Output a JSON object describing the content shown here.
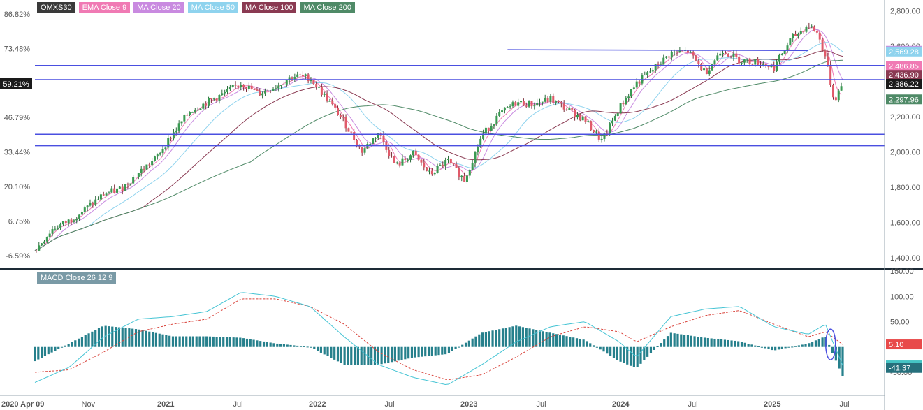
{
  "chart_data": [
    {
      "type": "candlestick",
      "symbol": "OMXS30",
      "legend": [
        {
          "label": "OMXS30",
          "color": "#3a3a3a"
        },
        {
          "label": "EMA Close 9",
          "color": "#f07ab4"
        },
        {
          "label": "MA Close 20",
          "color": "#c98ae0"
        },
        {
          "label": "MA Close 50",
          "color": "#8fd3ee"
        },
        {
          "label": "MA Close 100",
          "color": "#8a3a52"
        },
        {
          "label": "MA Close 200",
          "color": "#4f8a67"
        }
      ],
      "x_labels": [
        "2020 Apr 09",
        "Nov",
        "2021",
        "Jul",
        "2022",
        "Jul",
        "2023",
        "Jul",
        "2024",
        "Jul",
        "2025",
        "Jul"
      ],
      "left_axis_ticks": [
        "86.82%",
        "73.48%",
        "59.21%",
        "46.79%",
        "33.44%",
        "20.10%",
        "6.75%",
        "-6.59%"
      ],
      "right_axis_ticks": [
        "2,800.00",
        "2,600.00",
        "2,400.00",
        "2,200.00",
        "2,000.00",
        "1,800.00",
        "1,600.00",
        "1,400.00"
      ],
      "ylim": [
        1340,
        2830
      ],
      "price_path": [
        [
          0,
          1440
        ],
        [
          2,
          1560
        ],
        [
          4,
          1610
        ],
        [
          6,
          1680
        ],
        [
          8,
          1760
        ],
        [
          10,
          1790
        ],
        [
          12,
          1880
        ],
        [
          14,
          1960
        ],
        [
          16,
          2100
        ],
        [
          18,
          2230
        ],
        [
          20,
          2280
        ],
        [
          22,
          2330
        ],
        [
          24,
          2390
        ],
        [
          26,
          2330
        ],
        [
          28,
          2370
        ],
        [
          30,
          2430
        ],
        [
          32,
          2420
        ],
        [
          34,
          2300
        ],
        [
          36,
          2170
        ],
        [
          38,
          2000
        ],
        [
          40,
          2110
        ],
        [
          42,
          1920
        ],
        [
          44,
          1990
        ],
        [
          46,
          1870
        ],
        [
          48,
          1950
        ],
        [
          50,
          1840
        ],
        [
          52,
          2090
        ],
        [
          54,
          2210
        ],
        [
          56,
          2280
        ],
        [
          58,
          2270
        ],
        [
          60,
          2300
        ],
        [
          62,
          2240
        ],
        [
          64,
          2180
        ],
        [
          66,
          2060
        ],
        [
          68,
          2250
        ],
        [
          70,
          2390
        ],
        [
          72,
          2470
        ],
        [
          74,
          2560
        ],
        [
          76,
          2570
        ],
        [
          78,
          2450
        ],
        [
          80,
          2580
        ],
        [
          82,
          2520
        ],
        [
          84,
          2510
        ],
        [
          86,
          2480
        ],
        [
          88,
          2640
        ],
        [
          90,
          2720
        ],
        [
          91,
          2680
        ],
        [
          92,
          2540
        ],
        [
          93,
          2290
        ],
        [
          94,
          2386
        ]
      ],
      "x_index_max": 94,
      "horizontal_levels": [
        2490,
        2410,
        2100,
        2035
      ],
      "resistance_line": {
        "from": [
          55,
          2580
        ],
        "to": [
          90,
          2580
        ],
        "y_end": 2575
      },
      "current_values": [
        {
          "label": "2,573.43",
          "value": 2573.43,
          "color": "#c98ae0"
        },
        {
          "label": "2,569.28",
          "value": 2569.28,
          "color": "#8fd3ee"
        },
        {
          "label": "2,486.85",
          "value": 2486.85,
          "color": "#f07ab4"
        },
        {
          "label": "2,436.90",
          "value": 2436.9,
          "color": "#8a3a52"
        },
        {
          "label": "2,386.22",
          "value": 2386.22,
          "color": "#1a1a1a"
        },
        {
          "label": "2,297.96",
          "value": 2297.96,
          "color": "#4f8a67"
        }
      ],
      "left_highlight": {
        "label": "59.21%",
        "value": 2386.22
      }
    },
    {
      "type": "macd",
      "legend": "MACD Close 26 12 9",
      "right_axis_ticks": [
        "150.00",
        "100.00",
        "50.00",
        "-50.00"
      ],
      "ylim": [
        -90,
        150
      ],
      "macd_path": [
        [
          0,
          -70
        ],
        [
          4,
          -40
        ],
        [
          8,
          20
        ],
        [
          12,
          55
        ],
        [
          16,
          60
        ],
        [
          20,
          70
        ],
        [
          24,
          108
        ],
        [
          28,
          100
        ],
        [
          32,
          80
        ],
        [
          36,
          20
        ],
        [
          40,
          -35
        ],
        [
          44,
          -60
        ],
        [
          48,
          -75
        ],
        [
          52,
          -35
        ],
        [
          56,
          10
        ],
        [
          60,
          40
        ],
        [
          64,
          50
        ],
        [
          68,
          10
        ],
        [
          70,
          -20
        ],
        [
          74,
          60
        ],
        [
          78,
          75
        ],
        [
          82,
          80
        ],
        [
          86,
          40
        ],
        [
          90,
          25
        ],
        [
          92,
          45
        ],
        [
          94,
          -36.27
        ]
      ],
      "signal_path": [
        [
          0,
          -50
        ],
        [
          4,
          -45
        ],
        [
          8,
          -10
        ],
        [
          12,
          30
        ],
        [
          16,
          45
        ],
        [
          20,
          55
        ],
        [
          24,
          95
        ],
        [
          28,
          95
        ],
        [
          32,
          80
        ],
        [
          36,
          45
        ],
        [
          40,
          -10
        ],
        [
          44,
          -45
        ],
        [
          48,
          -65
        ],
        [
          52,
          -55
        ],
        [
          56,
          -20
        ],
        [
          60,
          20
        ],
        [
          64,
          40
        ],
        [
          68,
          30
        ],
        [
          70,
          10
        ],
        [
          74,
          40
        ],
        [
          78,
          62
        ],
        [
          82,
          72
        ],
        [
          86,
          45
        ],
        [
          90,
          20
        ],
        [
          92,
          30
        ],
        [
          94,
          5.1
        ]
      ],
      "current_values": [
        {
          "label": "5.10",
          "value": 5.1,
          "color": "#e84a4a"
        },
        {
          "label": "-36.27",
          "value": -36.27,
          "color": "#45c4c4"
        },
        {
          "label": "-41.37",
          "value": -41.37,
          "color": "#26707c"
        }
      ]
    }
  ]
}
